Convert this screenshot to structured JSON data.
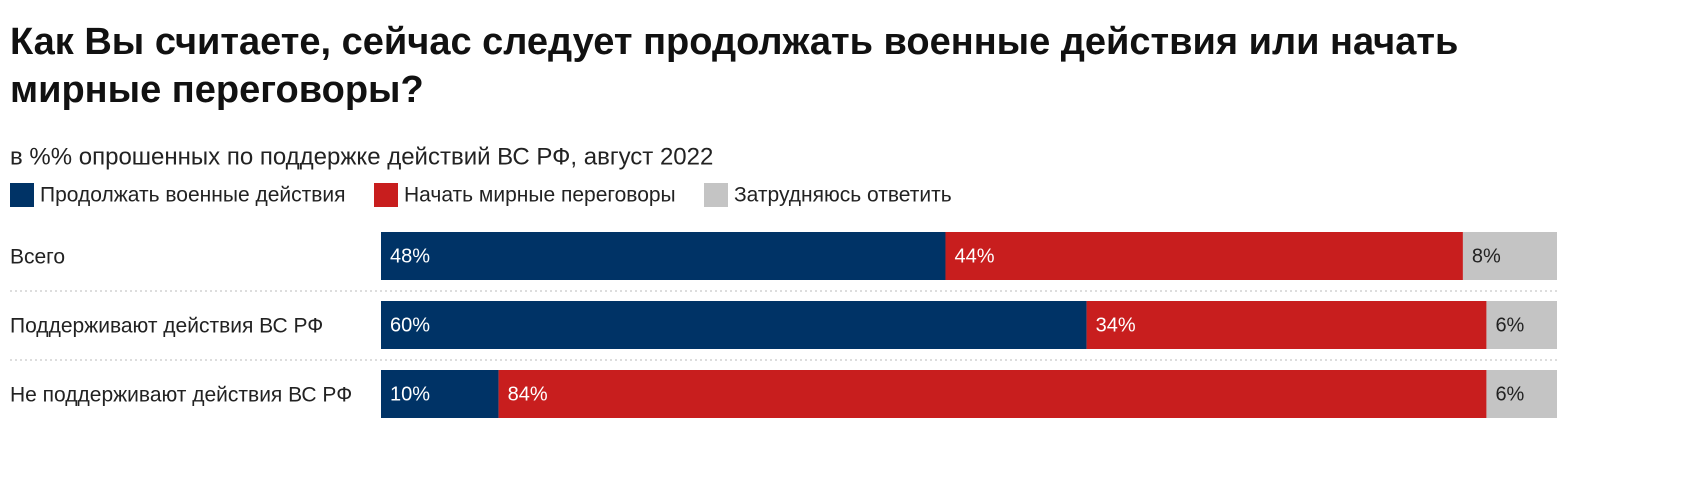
{
  "chart_data": {
    "type": "stacked_bar_horizontal",
    "title": "Как Вы считаете, сейчас следует продолжать военные действия или начать мирные переговоры?",
    "subtitle": "в %% опрошенных по поддержке действий ВС РФ, август 2022",
    "categories": [
      "Всего",
      "Поддерживают действия ВС РФ",
      "Не поддерживают действия ВС РФ"
    ],
    "series": [
      {
        "name": "Продолжать военные действия",
        "color": "#003366",
        "values": [
          48,
          60,
          10
        ],
        "value_labels": [
          "48%",
          "60%",
          "10%"
        ]
      },
      {
        "name": "Начать мирные переговоры",
        "color": "#c81e1e",
        "values": [
          44,
          34,
          84
        ],
        "value_labels": [
          "44%",
          "34%",
          "84%"
        ]
      },
      {
        "name": "Затрудняюсь ответить",
        "color": "#c4c4c4",
        "values": [
          8,
          6,
          6
        ],
        "value_labels": [
          "8%",
          "6%",
          "6%"
        ]
      }
    ]
  }
}
